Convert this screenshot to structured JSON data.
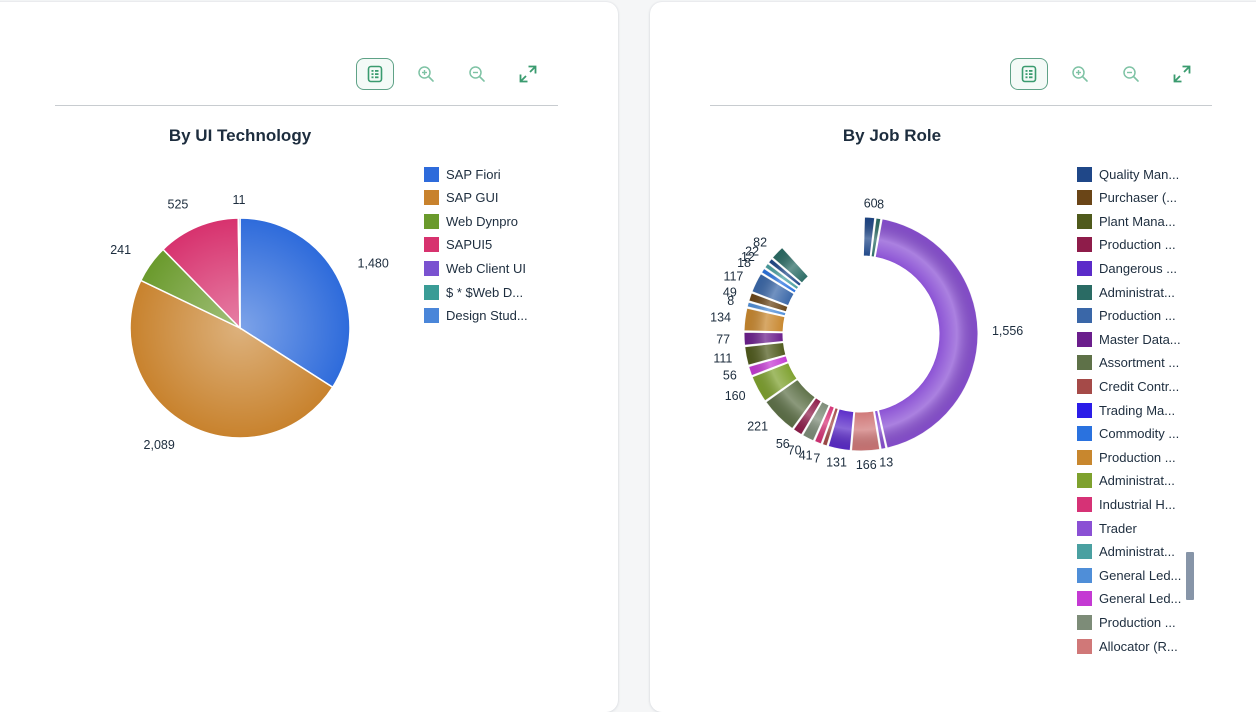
{
  "panels": [
    {
      "toolbar": [
        {
          "name": "table-view-icon",
          "state": "selected"
        },
        {
          "name": "zoom-in-icon"
        },
        {
          "name": "zoom-out-icon"
        },
        {
          "name": "fullscreen-icon"
        }
      ]
    },
    {
      "toolbar": [
        {
          "name": "table-view-icon",
          "state": "selected"
        },
        {
          "name": "zoom-in-icon"
        },
        {
          "name": "zoom-out-icon"
        },
        {
          "name": "fullscreen-icon"
        }
      ]
    }
  ],
  "colors": {
    "toolbar_accent": "#3a9b6f",
    "selected_border": "#5fa287",
    "slice_separator": "#ffffff",
    "scrollbar": "#8795a8"
  },
  "chart_data": [
    {
      "type": "pie",
      "title": "By UI Technology",
      "legend_position": "right",
      "categories": [
        "SAP Fiori",
        "SAP GUI",
        "Web Dynpro",
        "SAPUI5",
        "Web Client UI",
        "$ * $Web D...",
        "Design Stud..."
      ],
      "series": [
        {
          "values": [
            1480,
            2089,
            241,
            525,
            null,
            null,
            11
          ]
        }
      ],
      "data_labels": [
        "1,480",
        "2,089",
        "241",
        "525",
        "",
        "",
        "11"
      ],
      "colors": [
        "#2e6bdb",
        "#c8822d",
        "#6a9a2c",
        "#d7326e",
        "#7a52d0",
        "#3a9c96",
        "#4a86d9"
      ]
    },
    {
      "type": "pie",
      "subtype": "donut",
      "title": "By Job Role",
      "legend_position": "right",
      "legend_truncated": true,
      "legend": [
        {
          "label": "Quality Man...",
          "color": "#1f4788"
        },
        {
          "label": "Purchaser (...",
          "color": "#6a4517"
        },
        {
          "label": "Plant Mana...",
          "color": "#4f5a1c"
        },
        {
          "label": "Production ...",
          "color": "#8e1c4a"
        },
        {
          "label": "Dangerous ...",
          "color": "#5b2bc9"
        },
        {
          "label": "Administrat...",
          "color": "#2a6b64"
        },
        {
          "label": "Production ...",
          "color": "#3a67a8"
        },
        {
          "label": "Master Data...",
          "color": "#6b1e8c"
        },
        {
          "label": "Assortment ...",
          "color": "#5e7148"
        },
        {
          "label": "Credit Contr...",
          "color": "#a54a48"
        },
        {
          "label": "Trading Ma...",
          "color": "#2b1de8"
        },
        {
          "label": "Commodity ...",
          "color": "#2a72df"
        },
        {
          "label": "Production ...",
          "color": "#c8872e"
        },
        {
          "label": "Administrat...",
          "color": "#7ea12e"
        },
        {
          "label": "Industrial H...",
          "color": "#d63276"
        },
        {
          "label": "Trader",
          "color": "#8a50d4"
        },
        {
          "label": "Administrat...",
          "color": "#4aa0a1"
        },
        {
          "label": "General Led...",
          "color": "#4f8ed8"
        },
        {
          "label": "General Led...",
          "color": "#c43ad3"
        },
        {
          "label": "Production ...",
          "color": "#7d8c78"
        },
        {
          "label": "Allocator (R...",
          "color": "#d07878"
        }
      ],
      "data_labels": [
        "60",
        "8",
        "1,556",
        "13",
        "166",
        "131",
        "7",
        "41",
        "70",
        "56",
        "221",
        "160",
        "56",
        "111",
        "77",
        "134",
        "8",
        "49",
        "117",
        "18",
        "12",
        "22",
        "82"
      ],
      "values": [
        60,
        8,
        1556,
        13,
        166,
        131,
        7,
        41,
        70,
        56,
        221,
        160,
        56,
        111,
        77,
        134,
        8,
        49,
        117,
        18,
        12,
        22,
        82
      ]
    }
  ]
}
